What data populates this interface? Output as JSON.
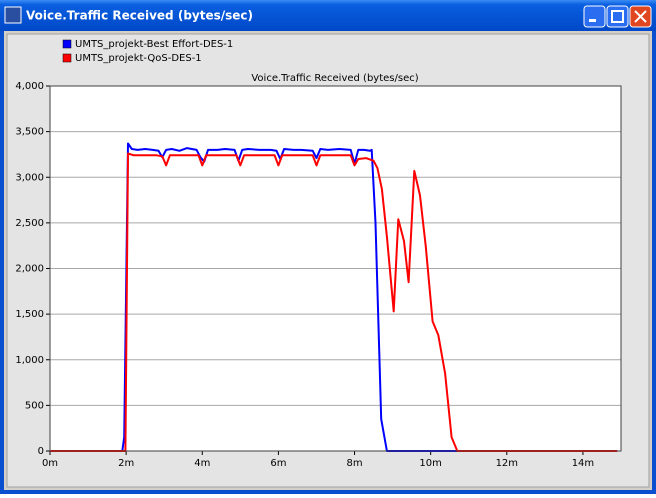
{
  "window": {
    "title": "Voice.Traffic Received (bytes/sec)"
  },
  "chart_data": {
    "type": "line",
    "title": "Voice.Traffic Received (bytes/sec)",
    "series": [
      {
        "name": "UMTS_projekt-Best Effort-DES-1",
        "color": "#0000ff",
        "x": [
          0,
          1.9,
          1.95,
          2.05,
          2.15,
          2.3,
          2.5,
          2.7,
          2.85,
          2.95,
          3.05,
          3.2,
          3.4,
          3.6,
          3.85,
          3.95,
          4.05,
          4.15,
          4.4,
          4.6,
          4.85,
          4.95,
          5.05,
          5.2,
          5.5,
          5.8,
          5.95,
          6.05,
          6.15,
          6.4,
          6.6,
          6.9,
          7.0,
          7.1,
          7.3,
          7.6,
          7.9,
          8.0,
          8.1,
          8.25,
          8.4,
          8.45,
          8.55,
          8.7,
          8.85,
          14.9
        ],
        "values": [
          0,
          0,
          150,
          3370,
          3310,
          3300,
          3310,
          3300,
          3290,
          3220,
          3300,
          3310,
          3290,
          3320,
          3300,
          3220,
          3170,
          3300,
          3300,
          3310,
          3300,
          3180,
          3300,
          3310,
          3300,
          3300,
          3290,
          3200,
          3310,
          3300,
          3300,
          3290,
          3210,
          3310,
          3300,
          3310,
          3300,
          3150,
          3300,
          3300,
          3290,
          3300,
          2500,
          350,
          0,
          0
        ]
      },
      {
        "name": "UMTS_projekt-QoS-DES-1",
        "color": "#ff0000",
        "x": [
          0,
          1.98,
          2.05,
          2.2,
          2.5,
          2.8,
          2.95,
          3.05,
          3.15,
          3.5,
          3.9,
          4.0,
          4.1,
          4.5,
          4.9,
          5.0,
          5.1,
          5.5,
          5.9,
          6.0,
          6.1,
          6.5,
          6.9,
          7.0,
          7.1,
          7.5,
          7.9,
          8.0,
          8.1,
          8.3,
          8.5,
          8.6,
          8.72,
          8.85,
          9.03,
          9.15,
          9.3,
          9.42,
          9.57,
          9.72,
          9.87,
          10.05,
          10.2,
          10.38,
          10.55,
          10.7,
          14.9
        ],
        "values": [
          0,
          0,
          3260,
          3240,
          3240,
          3240,
          3230,
          3130,
          3240,
          3240,
          3240,
          3130,
          3240,
          3240,
          3240,
          3130,
          3240,
          3240,
          3240,
          3130,
          3240,
          3240,
          3240,
          3130,
          3240,
          3240,
          3240,
          3130,
          3200,
          3210,
          3180,
          3100,
          2870,
          2350,
          1530,
          2540,
          2300,
          1850,
          3070,
          2800,
          2250,
          1420,
          1270,
          850,
          150,
          0,
          0
        ]
      }
    ],
    "xlim": [
      0,
      15
    ],
    "xticks": [
      {
        "value": 0,
        "label": "0m"
      },
      {
        "value": 2,
        "label": "2m"
      },
      {
        "value": 4,
        "label": "4m"
      },
      {
        "value": 6,
        "label": "6m"
      },
      {
        "value": 8,
        "label": "8m"
      },
      {
        "value": 10,
        "label": "10m"
      },
      {
        "value": 12,
        "label": "12m"
      },
      {
        "value": 14,
        "label": "14m"
      }
    ],
    "ylim": [
      0,
      4000
    ],
    "yticks": [
      0,
      500,
      {
        "value": 1000,
        "label": "1,000"
      },
      {
        "value": 1500,
        "label": "1,500"
      },
      {
        "value": 2000,
        "label": "2,000"
      },
      {
        "value": 2500,
        "label": "2,500"
      },
      {
        "value": 3000,
        "label": "3,000"
      },
      {
        "value": 3500,
        "label": "3,500"
      },
      {
        "value": 4000,
        "label": "4,000"
      }
    ],
    "grid": true
  }
}
